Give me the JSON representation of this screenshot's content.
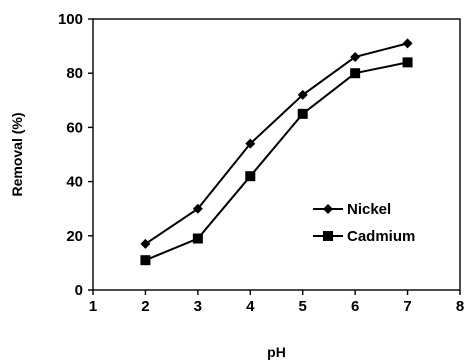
{
  "chart_data": {
    "type": "line",
    "xlabel": "pH",
    "ylabel": "Removal (%)",
    "xlim": [
      1,
      8
    ],
    "ylim": [
      0,
      100
    ],
    "x_ticks": [
      1,
      2,
      3,
      4,
      5,
      6,
      7,
      8
    ],
    "y_ticks": [
      0,
      20,
      40,
      60,
      80,
      100
    ],
    "grid": false,
    "legend_position": "bottom-right",
    "series": [
      {
        "name": "Nickel",
        "marker": "diamond",
        "color": "#000000",
        "x": [
          2,
          3,
          4,
          5,
          6,
          7
        ],
        "y": [
          17,
          30,
          54,
          72,
          86,
          91
        ]
      },
      {
        "name": "Cadmium",
        "marker": "square",
        "color": "#000000",
        "x": [
          2,
          3,
          4,
          5,
          6,
          7
        ],
        "y": [
          11,
          19,
          42,
          65,
          80,
          84
        ]
      }
    ]
  }
}
